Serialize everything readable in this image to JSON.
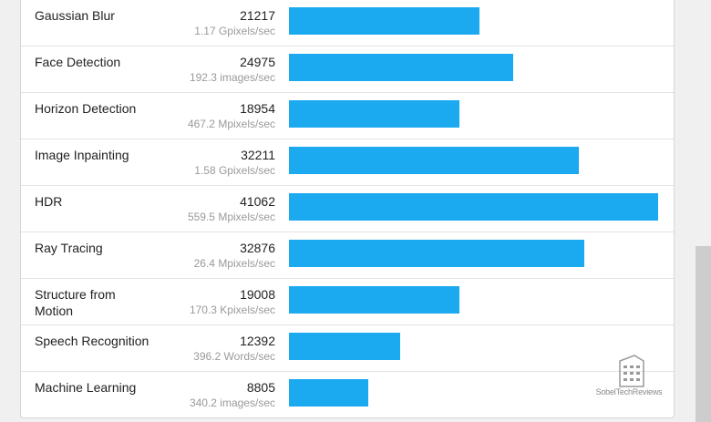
{
  "chart_data": {
    "type": "bar",
    "orientation": "horizontal",
    "categories": [
      "Gaussian Blur",
      "Face Detection",
      "Horizon Detection",
      "Image Inpainting",
      "HDR",
      "Ray Tracing",
      "Structure from Motion",
      "Speech Recognition",
      "Machine Learning"
    ],
    "values": [
      21217,
      24975,
      18954,
      32211,
      41062,
      32876,
      19008,
      12392,
      8805
    ],
    "rates": [
      "1.17 Gpixels/sec",
      "192.3 images/sec",
      "467.2 Mpixels/sec",
      "1.58 Gpixels/sec",
      "559.5 Mpixels/sec",
      "26.4 Mpixels/sec",
      "170.3 Kpixels/sec",
      "396.2 Words/sec",
      "340.2 images/sec"
    ],
    "xlim": [
      0,
      41062
    ],
    "bar_color": "#1ba9f0"
  },
  "watermark": {
    "text": "SobelTechReviews"
  }
}
